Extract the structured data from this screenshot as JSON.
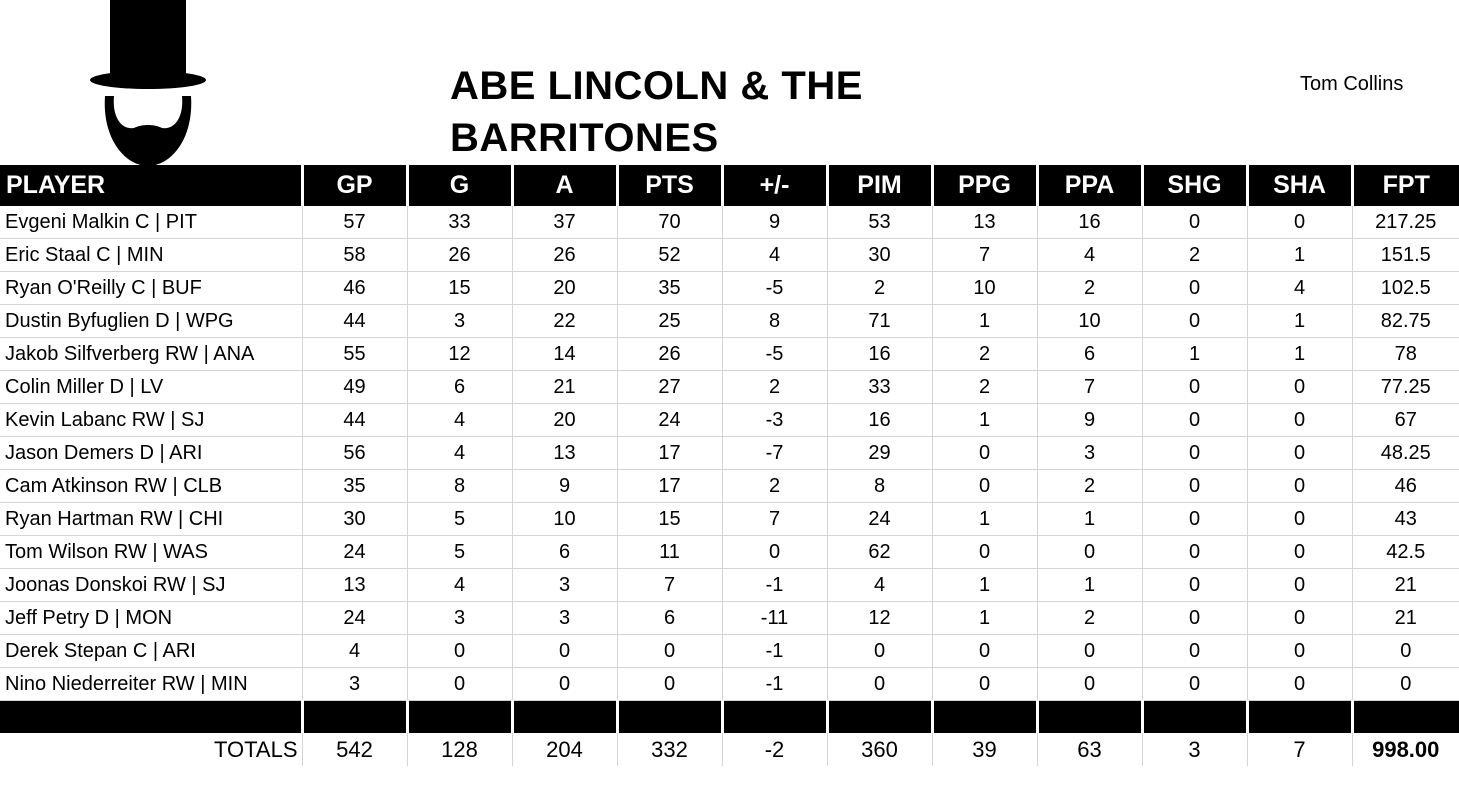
{
  "header": {
    "title": "ABE LINCOLN & THE BARRITONES",
    "owner": "Tom Collins",
    "logo_icon": "top-hat-beard-icon"
  },
  "table": {
    "columns": [
      "PLAYER",
      "GP",
      "G",
      "A",
      "PTS",
      "+/-",
      "PIM",
      "PPG",
      "PPA",
      "SHG",
      "SHA",
      "FPT"
    ],
    "rows": [
      [
        "Evgeni Malkin C | PIT",
        "57",
        "33",
        "37",
        "70",
        "9",
        "53",
        "13",
        "16",
        "0",
        "0",
        "217.25"
      ],
      [
        "Eric Staal C | MIN",
        "58",
        "26",
        "26",
        "52",
        "4",
        "30",
        "7",
        "4",
        "2",
        "1",
        "151.5"
      ],
      [
        "Ryan O'Reilly C | BUF",
        "46",
        "15",
        "20",
        "35",
        "-5",
        "2",
        "10",
        "2",
        "0",
        "4",
        "102.5"
      ],
      [
        "Dustin Byfuglien D | WPG",
        "44",
        "3",
        "22",
        "25",
        "8",
        "71",
        "1",
        "10",
        "0",
        "1",
        "82.75"
      ],
      [
        "Jakob Silfverberg RW | ANA",
        "55",
        "12",
        "14",
        "26",
        "-5",
        "16",
        "2",
        "6",
        "1",
        "1",
        "78"
      ],
      [
        "Colin Miller D | LV",
        "49",
        "6",
        "21",
        "27",
        "2",
        "33",
        "2",
        "7",
        "0",
        "0",
        "77.25"
      ],
      [
        "Kevin Labanc RW | SJ",
        "44",
        "4",
        "20",
        "24",
        "-3",
        "16",
        "1",
        "9",
        "0",
        "0",
        "67"
      ],
      [
        "Jason Demers D | ARI",
        "56",
        "4",
        "13",
        "17",
        "-7",
        "29",
        "0",
        "3",
        "0",
        "0",
        "48.25"
      ],
      [
        "Cam Atkinson RW | CLB",
        "35",
        "8",
        "9",
        "17",
        "2",
        "8",
        "0",
        "2",
        "0",
        "0",
        "46"
      ],
      [
        "Ryan Hartman RW | CHI",
        "30",
        "5",
        "10",
        "15",
        "7",
        "24",
        "1",
        "1",
        "0",
        "0",
        "43"
      ],
      [
        "Tom Wilson RW | WAS",
        "24",
        "5",
        "6",
        "11",
        "0",
        "62",
        "0",
        "0",
        "0",
        "0",
        "42.5"
      ],
      [
        "Joonas Donskoi RW | SJ",
        "13",
        "4",
        "3",
        "7",
        "-1",
        "4",
        "1",
        "1",
        "0",
        "0",
        "21"
      ],
      [
        "Jeff Petry D | MON",
        "24",
        "3",
        "3",
        "6",
        "-11",
        "12",
        "1",
        "2",
        "0",
        "0",
        "21"
      ],
      [
        "Derek Stepan C | ARI",
        "4",
        "0",
        "0",
        "0",
        "-1",
        "0",
        "0",
        "0",
        "0",
        "0",
        "0"
      ],
      [
        "Nino Niederreiter RW | MIN",
        "3",
        "0",
        "0",
        "0",
        "-1",
        "0",
        "0",
        "0",
        "0",
        "0",
        "0"
      ]
    ],
    "totals": [
      "TOTALS",
      "542",
      "128",
      "204",
      "332",
      "-2",
      "360",
      "39",
      "63",
      "3",
      "7",
      "998.00"
    ]
  }
}
